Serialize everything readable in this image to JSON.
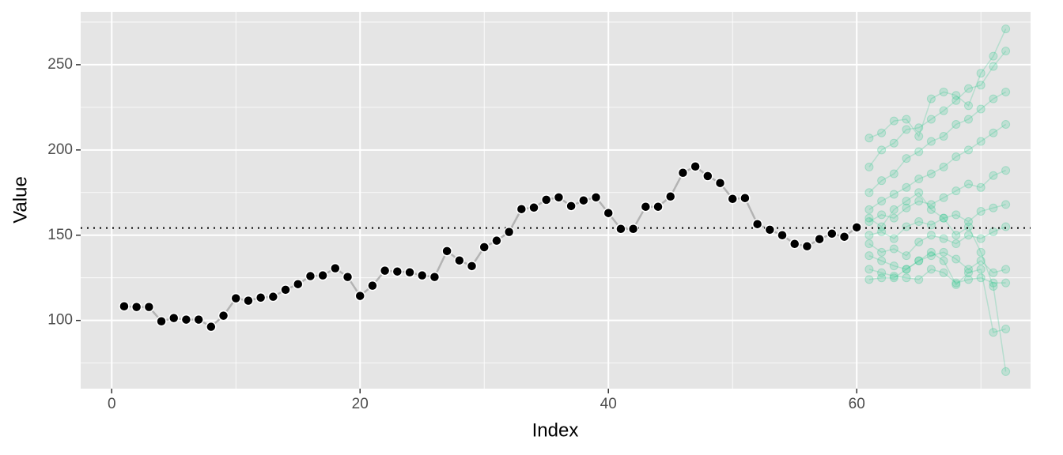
{
  "chart_data": {
    "type": "line",
    "x_label": "Index",
    "y_label": "Value",
    "xlim": [
      -2.5,
      74.0
    ],
    "ylim": [
      60,
      281
    ],
    "xticks": [
      0,
      20,
      40,
      60
    ],
    "yticks": [
      100,
      150,
      200,
      250
    ],
    "x_minor_ticks": [
      10,
      30,
      50,
      70
    ],
    "y_minor_ticks": [
      75,
      125,
      175,
      225,
      275
    ],
    "grid": true,
    "reference_line": 154.2,
    "observed": {
      "color": "#000000",
      "line_color": "#b3b3b3",
      "x": [
        1,
        2,
        3,
        4,
        5,
        6,
        7,
        8,
        9,
        10,
        11,
        12,
        13,
        14,
        15,
        16,
        17,
        18,
        19,
        20,
        21,
        22,
        23,
        24,
        25,
        26,
        27,
        28,
        29,
        30,
        31,
        32,
        33,
        34,
        35,
        36,
        37,
        38,
        39,
        40,
        41,
        42,
        43,
        44,
        45,
        46,
        47,
        48,
        49,
        50,
        51,
        52,
        53,
        54,
        55,
        56,
        57,
        58,
        59,
        60
      ],
      "values": [
        108.3,
        107.9,
        107.9,
        99.5,
        101.4,
        100.5,
        100.5,
        96.3,
        102.8,
        113,
        111.6,
        113.4,
        113.9,
        118,
        121.3,
        126,
        126.4,
        130.6,
        125.5,
        114.4,
        120.4,
        129.2,
        128.7,
        128.2,
        126.4,
        125.5,
        140.7,
        135.2,
        131.9,
        143,
        146.8,
        151.9,
        165.3,
        166.2,
        170.8,
        172.2,
        167.1,
        170.4,
        172.2,
        163,
        153.7,
        153.7,
        166.7,
        166.7,
        172.7,
        186.6,
        190.3,
        184.7,
        180.6,
        171.3,
        171.8,
        156.5,
        153.2,
        150,
        144.9,
        143.5,
        147.7,
        150.9,
        149.1,
        154.6
      ]
    },
    "simulations": {
      "color": "#2ac78a",
      "x": [
        61,
        62,
        63,
        64,
        65,
        66,
        67,
        68,
        69,
        70,
        71,
        72
      ],
      "series": [
        {
          "values": [
            207,
            210,
            217,
            218,
            208,
            230,
            234,
            232,
            226,
            245,
            255,
            271
          ]
        },
        {
          "values": [
            190,
            200,
            204,
            212,
            213,
            218,
            223,
            229,
            236,
            238,
            249,
            258
          ]
        },
        {
          "values": [
            175,
            182,
            186,
            195,
            199,
            205,
            208,
            215,
            218,
            224,
            230,
            234
          ]
        },
        {
          "values": [
            165,
            170,
            174,
            178,
            183,
            186,
            190,
            196,
            200,
            205,
            210,
            215
          ]
        },
        {
          "values": [
            158,
            162,
            160,
            166,
            170,
            168,
            172,
            176,
            180,
            178,
            185,
            188
          ]
        },
        {
          "values": [
            150,
            152,
            148,
            155,
            158,
            156,
            160,
            162,
            158,
            164,
            166,
            168
          ]
        },
        {
          "values": [
            145,
            140,
            142,
            138,
            146,
            150,
            148,
            145,
            150,
            148,
            152,
            155
          ]
        },
        {
          "values": [
            138,
            135,
            132,
            130,
            135,
            138,
            140,
            136,
            130,
            135,
            128,
            130
          ]
        },
        {
          "values": [
            130,
            128,
            126,
            125,
            124,
            130,
            128,
            122,
            124,
            125,
            122,
            122
          ]
        },
        {
          "values": [
            124,
            125,
            125,
            130,
            135,
            140,
            135,
            121,
            128,
            130,
            93,
            95
          ]
        },
        {
          "values": [
            160,
            155,
            165,
            170,
            175,
            165,
            160,
            150,
            155,
            140,
            120,
            70
          ]
        }
      ]
    }
  }
}
